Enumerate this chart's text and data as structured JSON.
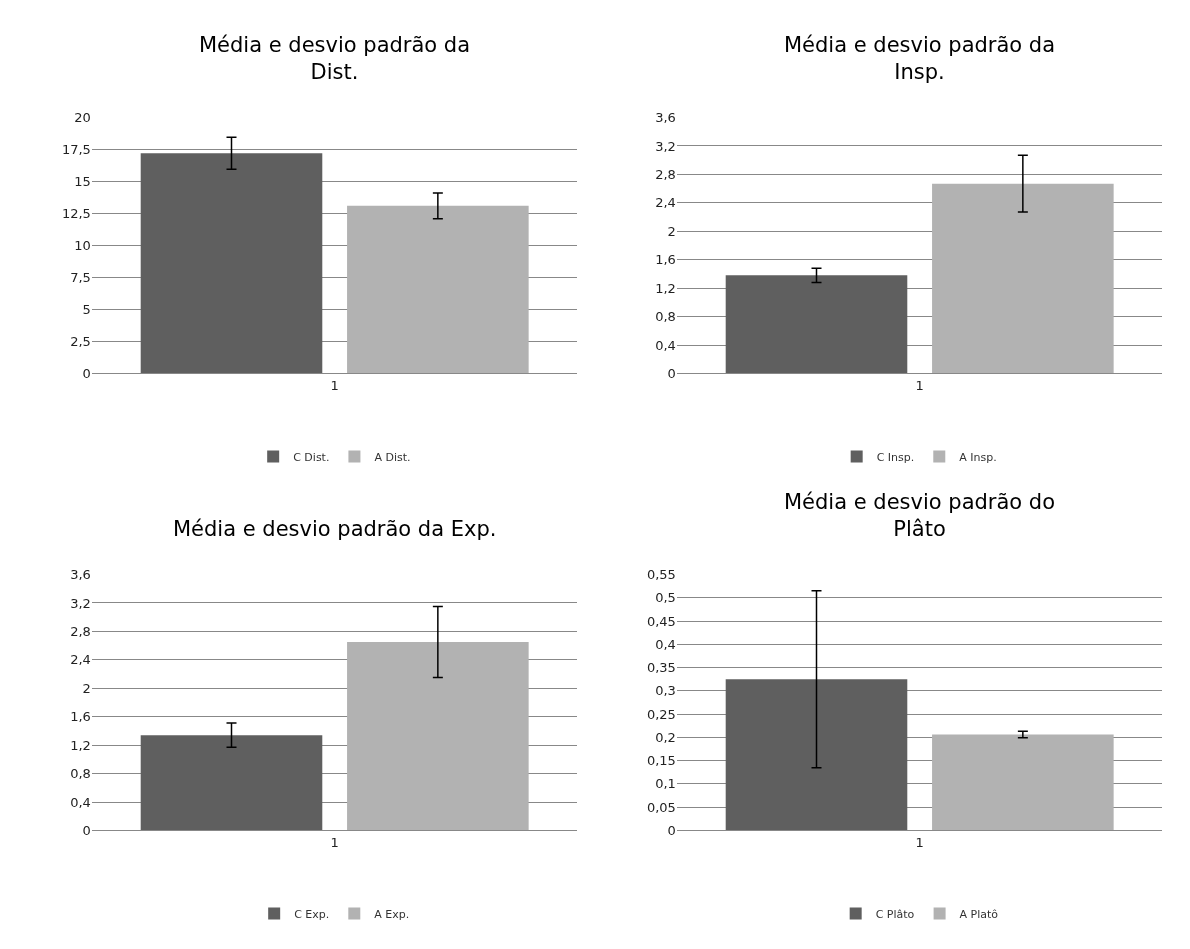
{
  "chart_data": [
    {
      "type": "bar",
      "title": "Média e desvio padrão da Dist.",
      "categories": [
        "1"
      ],
      "ylim": [
        0,
        20
      ],
      "yticks": [
        0,
        {
          "value": 2.5,
          "label": "2,5"
        },
        5,
        {
          "value": 7.5,
          "label": "7,5"
        },
        10,
        {
          "value": 12.5,
          "label": "12,5"
        },
        15,
        {
          "value": 17.5,
          "label": "17,5"
        },
        20
      ],
      "grid": "y",
      "legend": "bottom",
      "series": [
        {
          "name": "C Dist.",
          "color": "#5f5f5f",
          "values": [
            17.2
          ],
          "errors": [
            1.25
          ]
        },
        {
          "name": "A Dist.",
          "color": "#b2b2b2",
          "values": [
            13.1
          ],
          "errors": [
            1.0
          ]
        }
      ]
    },
    {
      "type": "bar",
      "title": "Média e desvio padrão da Insp.",
      "categories": [
        "1"
      ],
      "ylim": [
        0,
        3.6
      ],
      "yticks": [
        0,
        {
          "value": 0.4,
          "label": "0,4"
        },
        {
          "value": 0.8,
          "label": "0,8"
        },
        {
          "value": 1.2,
          "label": "1,2"
        },
        {
          "value": 1.6,
          "label": "1,6"
        },
        2,
        {
          "value": 2.4,
          "label": "2,4"
        },
        {
          "value": 2.8,
          "label": "2,8"
        },
        {
          "value": 3.2,
          "label": "3,2"
        },
        {
          "value": 3.6,
          "label": "3,6"
        }
      ],
      "grid": "y",
      "legend": "bottom",
      "series": [
        {
          "name": "C Insp.",
          "color": "#5f5f5f",
          "values": [
            1.38
          ],
          "errors": [
            0.1
          ]
        },
        {
          "name": "A Insp.",
          "color": "#b2b2b2",
          "values": [
            2.67
          ],
          "errors": [
            0.4
          ]
        }
      ]
    },
    {
      "type": "bar",
      "title": "Média e desvio padrão da Exp.",
      "categories": [
        "1"
      ],
      "ylim": [
        0,
        3.6
      ],
      "yticks": [
        0,
        {
          "value": 0.4,
          "label": "0,4"
        },
        {
          "value": 0.8,
          "label": "0,8"
        },
        {
          "value": 1.2,
          "label": "1,2"
        },
        {
          "value": 1.6,
          "label": "1,6"
        },
        2,
        {
          "value": 2.4,
          "label": "2,4"
        },
        {
          "value": 2.8,
          "label": "2,8"
        },
        {
          "value": 3.2,
          "label": "3,2"
        },
        {
          "value": 3.6,
          "label": "3,6"
        }
      ],
      "grid": "y",
      "legend": "bottom",
      "series": [
        {
          "name": "C Exp.",
          "color": "#5f5f5f",
          "values": [
            1.34
          ],
          "errors": [
            0.17
          ]
        },
        {
          "name": "A Exp.",
          "color": "#b2b2b2",
          "values": [
            2.65
          ],
          "errors": [
            0.5
          ]
        }
      ]
    },
    {
      "type": "bar",
      "title": "Média e desvio padrão do Plâto",
      "categories": [
        "1"
      ],
      "ylim": [
        0,
        0.55
      ],
      "yticks": [
        0,
        {
          "value": 0.05,
          "label": "0,05"
        },
        {
          "value": 0.1,
          "label": "0,1"
        },
        {
          "value": 0.15,
          "label": "0,15"
        },
        {
          "value": 0.2,
          "label": "0,2"
        },
        {
          "value": 0.25,
          "label": "0,25"
        },
        {
          "value": 0.3,
          "label": "0,3"
        },
        {
          "value": 0.35,
          "label": "0,35"
        },
        {
          "value": 0.4,
          "label": "0,4"
        },
        {
          "value": 0.45,
          "label": "0,45"
        },
        {
          "value": 0.5,
          "label": "0,5"
        },
        {
          "value": 0.55,
          "label": "0,55"
        }
      ],
      "grid": "y",
      "legend": "bottom",
      "series": [
        {
          "name": "C Plâto",
          "color": "#5f5f5f",
          "values": [
            0.325
          ],
          "errors": [
            0.19
          ]
        },
        {
          "name": "A Platô",
          "color": "#b2b2b2",
          "values": [
            0.206
          ],
          "errors": [
            0.007
          ]
        }
      ]
    }
  ]
}
